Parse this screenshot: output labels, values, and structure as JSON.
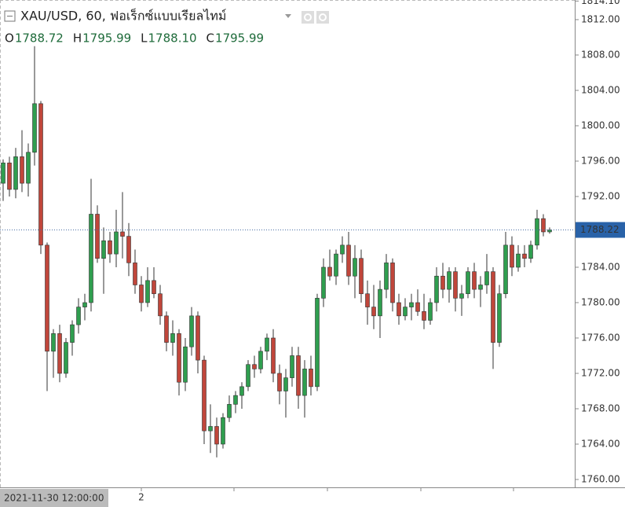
{
  "chart_data": {
    "type": "candlestick",
    "title": "XAU/USD, 60, ฟอเร็กซ์แบบเรียลไทม์",
    "ohlc_legend": [
      {
        "key": "O",
        "value": "1788.72"
      },
      {
        "key": "H",
        "value": "1795.99"
      },
      {
        "key": "L",
        "value": "1788.10"
      },
      {
        "key": "C",
        "value": "1795.99"
      }
    ],
    "open": [
      1793.5,
      1795.8,
      1792.8,
      1796.5,
      1793.5,
      1797.0,
      1802.5,
      1786.5,
      1774.5,
      1776.5,
      1772.0,
      1775.5,
      1777.5,
      1779.5,
      1780.0,
      1790.0,
      1785.0,
      1787.0,
      1785.5,
      1788.0,
      1787.5,
      1784.5,
      1782.0,
      1780.0,
      1782.5,
      1781.0,
      1778.5,
      1775.5,
      1776.5,
      1771.0,
      1775.0,
      1778.5,
      1773.5,
      1765.5,
      1766.0,
      1764.0,
      1767.0,
      1768.5,
      1769.5,
      1770.5,
      1773.0,
      1772.5,
      1774.5,
      1776.0,
      1772.0,
      1770.0,
      1771.5,
      1774.0,
      1769.5,
      1772.5,
      1770.5,
      1780.5,
      1784.0,
      1783.0,
      1785.5,
      1786.5,
      1783.0,
      1785.0,
      1781.0,
      1779.5,
      1778.5,
      1781.5,
      1784.5,
      1780.0,
      1778.5,
      1779.5,
      1780.0,
      1779.0,
      1778.0,
      1780.0,
      1783.0,
      1781.5,
      1783.5,
      1780.5,
      1781.0,
      1783.5,
      1781.5,
      1782.0,
      1783.5,
      1775.5,
      1781.0,
      1786.5,
      1784.0,
      1785.5,
      1785.0,
      1786.5,
      1789.5,
      1788.0
    ],
    "high": [
      1796.2,
      1796.5,
      1797.5,
      1799.5,
      1798.0,
      1809.0,
      1802.8,
      1786.8,
      1777.0,
      1777.5,
      1776.0,
      1778.0,
      1780.5,
      1781.0,
      1794.0,
      1791.0,
      1788.5,
      1788.0,
      1790.5,
      1792.5,
      1789.0,
      1786.0,
      1783.0,
      1784.0,
      1784.0,
      1782.0,
      1779.0,
      1778.0,
      1777.0,
      1776.0,
      1779.5,
      1779.0,
      1774.0,
      1768.5,
      1767.0,
      1767.5,
      1769.5,
      1770.0,
      1771.0,
      1773.5,
      1774.0,
      1775.0,
      1776.5,
      1777.0,
      1773.0,
      1772.5,
      1775.0,
      1775.0,
      1773.5,
      1774.0,
      1781.0,
      1785.0,
      1786.0,
      1786.0,
      1787.5,
      1788.0,
      1786.5,
      1786.0,
      1782.5,
      1782.0,
      1782.5,
      1785.5,
      1785.0,
      1781.0,
      1780.5,
      1781.0,
      1781.5,
      1781.0,
      1780.5,
      1784.0,
      1784.5,
      1784.0,
      1784.0,
      1782.0,
      1784.0,
      1784.5,
      1783.0,
      1785.5,
      1784.0,
      1782.0,
      1788.0,
      1787.5,
      1786.5,
      1786.5,
      1787.0,
      1790.5,
      1790.0,
      1788.5
    ],
    "low": [
      1791.5,
      1792.0,
      1791.8,
      1792.5,
      1792.0,
      1795.5,
      1785.5,
      1770.0,
      1771.5,
      1771.0,
      1771.5,
      1774.0,
      1776.5,
      1778.0,
      1779.0,
      1784.5,
      1781.0,
      1784.5,
      1784.0,
      1785.0,
      1783.0,
      1781.0,
      1779.0,
      1779.5,
      1780.5,
      1777.5,
      1774.5,
      1774.0,
      1769.5,
      1770.0,
      1774.0,
      1772.0,
      1764.0,
      1763.0,
      1762.5,
      1763.5,
      1766.5,
      1767.5,
      1768.0,
      1770.0,
      1771.5,
      1772.0,
      1773.5,
      1771.0,
      1768.5,
      1767.0,
      1770.5,
      1768.0,
      1767.0,
      1769.5,
      1770.0,
      1779.5,
      1782.5,
      1782.0,
      1784.5,
      1782.0,
      1780.5,
      1780.0,
      1777.5,
      1777.0,
      1776.0,
      1780.5,
      1779.0,
      1777.5,
      1778.0,
      1778.0,
      1778.5,
      1777.0,
      1777.5,
      1779.0,
      1780.5,
      1780.0,
      1779.0,
      1778.5,
      1780.5,
      1780.5,
      1779.5,
      1781.0,
      1772.5,
      1775.0,
      1780.5,
      1783.0,
      1783.5,
      1784.0,
      1784.5,
      1786.0,
      1787.5,
      1787.8
    ],
    "close": [
      1795.8,
      1792.8,
      1796.5,
      1793.5,
      1797.0,
      1802.5,
      1786.5,
      1774.5,
      1776.5,
      1772.0,
      1775.5,
      1777.5,
      1779.5,
      1780.0,
      1790.0,
      1785.0,
      1787.0,
      1785.5,
      1788.0,
      1787.5,
      1784.5,
      1782.0,
      1780.0,
      1782.5,
      1781.0,
      1778.5,
      1775.5,
      1776.5,
      1771.0,
      1775.0,
      1778.5,
      1773.5,
      1765.5,
      1766.0,
      1764.0,
      1767.0,
      1768.5,
      1769.5,
      1770.5,
      1773.0,
      1772.5,
      1774.5,
      1776.0,
      1772.0,
      1770.0,
      1771.5,
      1774.0,
      1769.5,
      1772.5,
      1770.5,
      1780.5,
      1784.0,
      1783.0,
      1785.5,
      1786.5,
      1783.0,
      1785.0,
      1781.0,
      1779.5,
      1778.5,
      1781.5,
      1784.5,
      1780.0,
      1778.5,
      1779.5,
      1780.0,
      1779.0,
      1778.0,
      1780.0,
      1783.0,
      1781.5,
      1783.5,
      1780.5,
      1781.0,
      1783.5,
      1781.5,
      1782.0,
      1783.5,
      1775.5,
      1781.0,
      1786.5,
      1784.0,
      1785.5,
      1785.0,
      1786.5,
      1789.5,
      1788.0,
      1788.22
    ],
    "up_color": "#2f9e4f",
    "down_color": "#c0463b",
    "ylim": [
      1759.11,
      1814.22
    ],
    "yticks": [
      {
        "value": 1760,
        "label": "1760.00"
      },
      {
        "value": 1764,
        "label": "1764.00"
      },
      {
        "value": 1768,
        "label": "1768.00"
      },
      {
        "value": 1772,
        "label": "1772.00"
      },
      {
        "value": 1776,
        "label": "1776.00"
      },
      {
        "value": 1780,
        "label": "1780.00"
      },
      {
        "value": 1784,
        "label": "1784.00"
      },
      {
        "value": 1788,
        "label": "1788.00"
      },
      {
        "value": 1792,
        "label": "1792.00"
      },
      {
        "value": 1796,
        "label": "1796.00"
      },
      {
        "value": 1800,
        "label": "1800.00"
      },
      {
        "value": 1804,
        "label": "1804.00"
      },
      {
        "value": 1808,
        "label": "1808.00"
      },
      {
        "value": 1812,
        "label": "1812.00"
      },
      {
        "value": 1814.1,
        "label": "1814.10"
      }
    ],
    "last_price": {
      "value": 1788.22,
      "label": "1788.22"
    },
    "x_labels": [
      {
        "index": 22,
        "label": "2"
      }
    ],
    "crosshair_label": "2021-11-30 12:00:00"
  }
}
